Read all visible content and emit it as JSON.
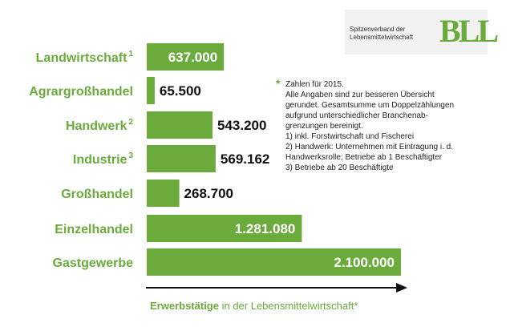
{
  "chart_data": {
    "type": "bar",
    "orientation": "horizontal",
    "categories": [
      "Landwirtschaft",
      "Agrargroßhandel",
      "Handwerk",
      "Industrie",
      "Großhandel",
      "Einzelhandel",
      "Gastgewerbe"
    ],
    "category_footnotes": [
      "1",
      "",
      "2",
      "3",
      "",
      "",
      ""
    ],
    "values": [
      637000,
      65500,
      543200,
      569162,
      268700,
      1281080,
      2100000
    ],
    "value_labels": [
      "637.000",
      "65.500",
      "543.200",
      "569.162",
      "268.700",
      "1.281.080",
      "2.100.000"
    ],
    "xlim": [
      0,
      2100000
    ],
    "bar_color": "#6aab3c",
    "xlabel_bold": "Erwerbstätige",
    "xlabel_rest": " in der Lebensmittelwirtschaft*"
  },
  "logo": {
    "line1": "Spitzenverband der",
    "line2": "Lebensmittelwirtschaft",
    "mark": "BLL"
  },
  "note": {
    "star": "*",
    "lines": [
      "Zahlen für 2015.",
      "Alle Angaben sind zur besseren Übersicht",
      "gerundet. Gesamtsumme um Doppelzählungen",
      "aufgrund unterschiedlicher Branchenab-",
      "grenzungen bereinigt.",
      "1) inkl. Forstwirtschaft und Fischerei",
      "2) Handwerk: Unternehmen mit Eintragung i. d.",
      "Handwerksrolle; Betriebe ab 1 Beschäftigter",
      "3) Betriebe ab 20 Beschäftigte"
    ]
  }
}
